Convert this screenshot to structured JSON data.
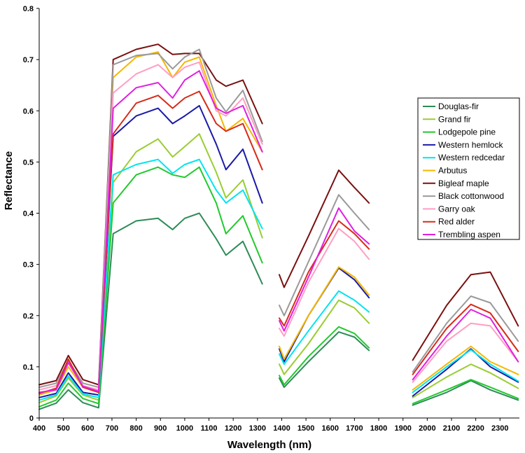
{
  "chart_data": {
    "type": "line",
    "title": "",
    "xlabel": "Wavelength (nm)",
    "ylabel": "Reflectance",
    "xlim": [
      400,
      2380
    ],
    "ylim": [
      0,
      0.8
    ],
    "xticks": [
      "400",
      "500",
      "600",
      "700",
      "800",
      "900",
      "1000",
      "1100",
      "1200",
      "1300",
      "1400",
      "1500",
      "1600",
      "1700",
      "1800",
      "1900",
      "2000",
      "2100",
      "2200",
      "2300"
    ],
    "yticks": [
      "0",
      "0.1",
      "0.2",
      "0.3",
      "0.4",
      "0.5",
      "0.6",
      "0.7",
      "0.8"
    ],
    "grid": false,
    "legend_position": "right",
    "segments": [
      [
        400,
        1320
      ],
      [
        1390,
        1760
      ],
      [
        1940,
        2375
      ]
    ],
    "series": [
      {
        "name": "Douglas-fir",
        "color": "#2e8b57",
        "y": [
          0.017,
          0.029,
          0.055,
          0.03,
          0.02,
          0.36,
          0.385,
          0.39,
          0.368,
          0.39,
          0.4,
          0.35,
          0.318,
          0.345,
          0.262,
          0.078,
          0.06,
          0.11,
          0.168,
          0.158,
          0.132,
          0.025,
          0.05,
          0.073,
          0.055,
          0.035
        ]
      },
      {
        "name": "Grand fir",
        "color": "#9acd32",
        "y": [
          0.03,
          0.043,
          0.078,
          0.045,
          0.035,
          0.46,
          0.52,
          0.545,
          0.51,
          0.53,
          0.555,
          0.48,
          0.43,
          0.465,
          0.352,
          0.105,
          0.085,
          0.145,
          0.23,
          0.215,
          0.185,
          0.04,
          0.08,
          0.105,
          0.088,
          0.058
        ]
      },
      {
        "name": "Lodgepole pine",
        "color": "#22c92e",
        "y": [
          0.022,
          0.035,
          0.068,
          0.038,
          0.028,
          0.42,
          0.475,
          0.49,
          0.475,
          0.47,
          0.49,
          0.42,
          0.36,
          0.395,
          0.303,
          0.083,
          0.065,
          0.12,
          0.178,
          0.165,
          0.137,
          0.028,
          0.055,
          0.075,
          0.06,
          0.038
        ]
      },
      {
        "name": "Western hemlock",
        "color": "#1a1aa8",
        "y": [
          0.04,
          0.048,
          0.088,
          0.05,
          0.045,
          0.55,
          0.59,
          0.605,
          0.575,
          0.59,
          0.61,
          0.535,
          0.485,
          0.525,
          0.42,
          0.135,
          0.11,
          0.2,
          0.293,
          0.27,
          0.235,
          0.043,
          0.095,
          0.135,
          0.1,
          0.07
        ]
      },
      {
        "name": "Western redcedar",
        "color": "#00e5ee",
        "y": [
          0.035,
          0.045,
          0.082,
          0.047,
          0.04,
          0.475,
          0.495,
          0.505,
          0.478,
          0.495,
          0.505,
          0.445,
          0.42,
          0.445,
          0.37,
          0.125,
          0.105,
          0.17,
          0.248,
          0.23,
          0.207,
          0.05,
          0.1,
          0.133,
          0.105,
          0.072
        ]
      },
      {
        "name": "Arbutus",
        "color": "#f5b800",
        "y": [
          0.045,
          0.055,
          0.1,
          0.06,
          0.05,
          0.665,
          0.705,
          0.715,
          0.665,
          0.695,
          0.705,
          0.61,
          0.56,
          0.585,
          0.52,
          0.14,
          0.115,
          0.2,
          0.295,
          0.275,
          0.24,
          0.055,
          0.105,
          0.14,
          0.11,
          0.085
        ]
      },
      {
        "name": "Bigleaf maple",
        "color": "#7a1010",
        "y": [
          0.065,
          0.073,
          0.122,
          0.075,
          0.065,
          0.7,
          0.72,
          0.73,
          0.71,
          0.712,
          0.712,
          0.66,
          0.648,
          0.66,
          0.575,
          0.28,
          0.255,
          0.355,
          0.484,
          0.45,
          0.42,
          0.113,
          0.22,
          0.28,
          0.285,
          0.18
        ]
      },
      {
        "name": "Black cottonwood",
        "color": "#9a9a9a",
        "y": [
          0.06,
          0.068,
          0.112,
          0.068,
          0.06,
          0.69,
          0.708,
          0.712,
          0.682,
          0.705,
          0.72,
          0.625,
          0.598,
          0.64,
          0.54,
          0.22,
          0.2,
          0.305,
          0.436,
          0.4,
          0.368,
          0.09,
          0.185,
          0.238,
          0.225,
          0.15
        ]
      },
      {
        "name": "Garry oak",
        "color": "#ff9ec4",
        "y": [
          0.055,
          0.063,
          0.108,
          0.063,
          0.055,
          0.635,
          0.672,
          0.69,
          0.665,
          0.685,
          0.695,
          0.6,
          0.59,
          0.625,
          0.535,
          0.175,
          0.16,
          0.265,
          0.37,
          0.345,
          0.31,
          0.07,
          0.15,
          0.185,
          0.18,
          0.11
        ]
      },
      {
        "name": "Red alder",
        "color": "#d62b1a",
        "y": [
          0.048,
          0.058,
          0.115,
          0.06,
          0.05,
          0.555,
          0.615,
          0.63,
          0.605,
          0.625,
          0.638,
          0.575,
          0.56,
          0.575,
          0.485,
          0.195,
          0.18,
          0.285,
          0.385,
          0.36,
          0.33,
          0.085,
          0.175,
          0.222,
          0.205,
          0.13
        ]
      },
      {
        "name": "Trembling aspen",
        "color": "#e020e0",
        "y": [
          0.05,
          0.055,
          0.108,
          0.062,
          0.052,
          0.605,
          0.645,
          0.655,
          0.625,
          0.66,
          0.678,
          0.605,
          0.595,
          0.61,
          0.52,
          0.19,
          0.17,
          0.275,
          0.41,
          0.365,
          0.34,
          0.075,
          0.16,
          0.212,
          0.195,
          0.11
        ]
      }
    ],
    "x": [
      400,
      470,
      520,
      580,
      645,
      705,
      800,
      890,
      950,
      1000,
      1060,
      1130,
      1170,
      1240,
      1320,
      1390,
      1410,
      1510,
      1635,
      1700,
      1760,
      1940,
      2080,
      2180,
      2260,
      2375
    ]
  }
}
